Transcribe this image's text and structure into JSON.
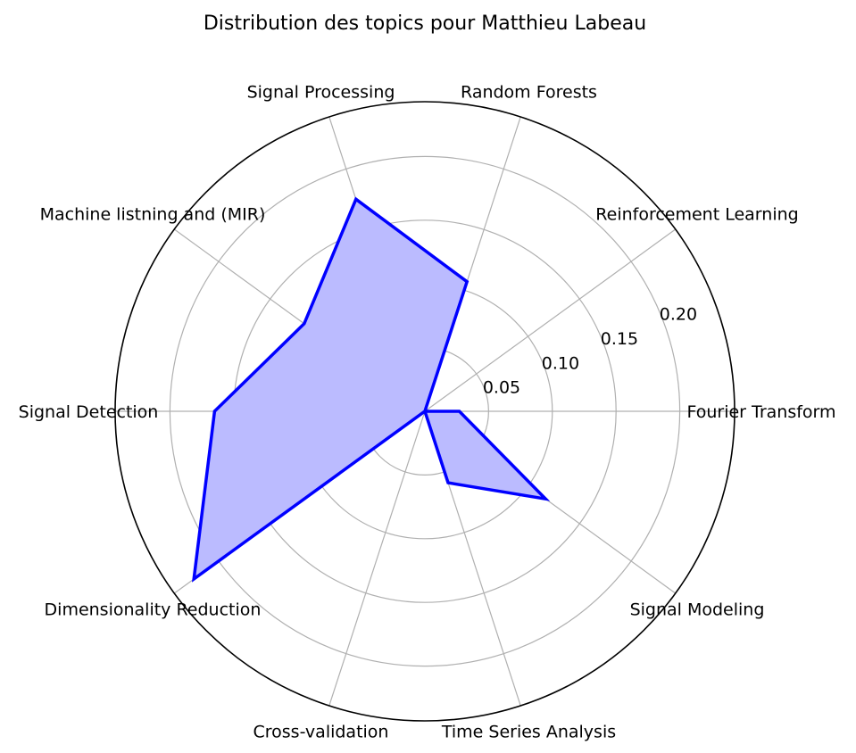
{
  "chart_data": {
    "type": "radar",
    "title": "Distribution des topics pour Matthieu Labeau",
    "categories": [
      "Fourier Transform",
      "Reinforcement Learning",
      "Random Forests",
      "Signal Processing",
      "Machine listning and (MIR)",
      "Signal Detection",
      "Dimensionality Reduction",
      "Cross-validation",
      "Time Series Analysis",
      "Signal Modeling"
    ],
    "values": [
      0.027,
      0.0,
      0.107,
      0.175,
      0.117,
      0.165,
      0.224,
      0.0,
      0.059,
      0.117
    ],
    "radial_ticks": [
      "0.05",
      "0.10",
      "0.15",
      "0.20"
    ],
    "radial_tick_values": [
      0.05,
      0.1,
      0.15,
      0.2
    ],
    "rmax": 0.243,
    "grid": true,
    "colors": {
      "line": "#0000ff",
      "fill": "#bbbbff",
      "grid": "#b0b0b0",
      "frame": "#000000"
    }
  }
}
